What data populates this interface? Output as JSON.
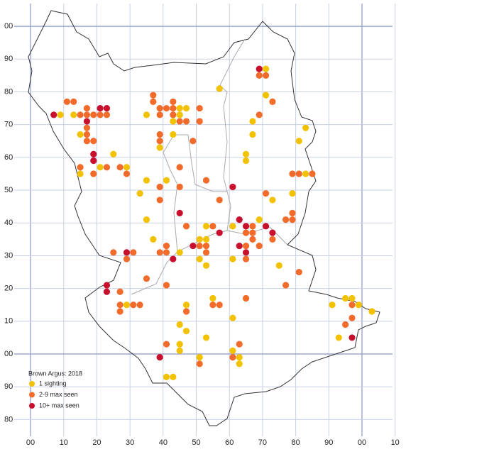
{
  "chart_data": {
    "type": "scatter",
    "title": "Brown Argus:  2018",
    "xlim": [
      -5,
      110
    ],
    "ylim": [
      -25,
      105
    ],
    "xticks": [
      {
        "value": 0,
        "label": "00"
      },
      10,
      20,
      30,
      40,
      50,
      60,
      70,
      80,
      90,
      {
        "value": 100,
        "label": "00"
      },
      {
        "value": 110,
        "label": "10"
      }
    ],
    "yticks": [
      {
        "value": -20,
        "label": "80"
      },
      {
        "value": -10,
        "label": "90"
      },
      {
        "value": 0,
        "label": "00"
      },
      10,
      20,
      30,
      40,
      50,
      60,
      70,
      80,
      90,
      {
        "value": 100,
        "label": "00"
      }
    ],
    "grid": true,
    "series": [
      {
        "name": "1 sighting",
        "color": "#f2c200",
        "x": [
          71,
          57,
          71,
          45,
          47,
          9,
          13,
          35,
          45,
          43,
          67,
          83,
          15,
          43,
          67,
          81,
          39,
          25,
          65,
          65,
          21,
          29,
          15,
          83,
          35,
          41,
          33,
          79,
          73,
          35,
          69,
          53,
          61,
          37,
          51,
          53,
          45,
          51,
          61,
          53,
          75,
          55,
          95,
          97,
          29,
          47,
          91,
          99,
          103,
          61,
          45,
          47,
          53,
          93,
          45,
          45,
          61,
          51,
          63,
          63,
          41,
          43
        ],
        "values": [
          87,
          81,
          79,
          75,
          75,
          73,
          73,
          73,
          73,
          71,
          71,
          69,
          67,
          67,
          67,
          65,
          63,
          61,
          61,
          59,
          57,
          57,
          55,
          55,
          53,
          53,
          49,
          49,
          47,
          41,
          41,
          39,
          39,
          35,
          35,
          35,
          31,
          29,
          29,
          27,
          27,
          17,
          17,
          17,
          15,
          15,
          15,
          15,
          13,
          11,
          9,
          7,
          5,
          5,
          3,
          1,
          1,
          -1,
          -1,
          -3,
          -7,
          -7
        ]
      },
      {
        "name": "2-9 max seen",
        "color": "#f26b2a",
        "x": [
          69,
          71,
          73,
          37,
          37,
          43,
          11,
          13,
          17,
          39,
          41,
          43,
          51,
          15,
          17,
          19,
          21,
          23,
          39,
          43,
          69,
          45,
          47,
          51,
          17,
          17,
          39,
          17,
          19,
          39,
          49,
          15,
          23,
          27,
          45,
          19,
          29,
          79,
          81,
          85,
          53,
          39,
          45,
          71,
          39,
          57,
          79,
          77,
          79,
          47,
          55,
          67,
          65,
          67,
          67,
          73,
          41,
          51,
          53,
          65,
          69,
          25,
          31,
          39,
          41,
          53,
          29,
          65,
          81,
          35,
          41,
          77,
          27,
          65,
          27,
          31,
          33,
          55,
          57,
          97,
          27,
          47,
          97,
          95,
          41,
          63,
          61,
          51
        ],
        "values": [
          85,
          85,
          77,
          79,
          77,
          77,
          77,
          77,
          75,
          75,
          75,
          75,
          75,
          73,
          73,
          73,
          73,
          73,
          73,
          73,
          73,
          71,
          71,
          71,
          69,
          67,
          67,
          65,
          65,
          65,
          65,
          57,
          57,
          57,
          57,
          55,
          55,
          55,
          55,
          55,
          53,
          51,
          51,
          49,
          47,
          47,
          43,
          41,
          41,
          39,
          39,
          39,
          37,
          37,
          35,
          35,
          33,
          33,
          33,
          33,
          33,
          31,
          31,
          31,
          31,
          31,
          29,
          29,
          25,
          23,
          21,
          21,
          19,
          17,
          15,
          15,
          15,
          15,
          15,
          15,
          13,
          13,
          11,
          9,
          3,
          3,
          -1,
          -3
        ]
      },
      {
        "name": "10+ max seen",
        "color": "#c8102e",
        "x": [
          69,
          21,
          23,
          7,
          17,
          19,
          19,
          61,
          45,
          63,
          65,
          71,
          57,
          73,
          49,
          63,
          29,
          65,
          43,
          23,
          23,
          97,
          39
        ],
        "values": [
          87,
          75,
          75,
          73,
          71,
          61,
          59,
          51,
          43,
          41,
          39,
          39,
          37,
          37,
          33,
          33,
          31,
          31,
          29,
          21,
          19,
          5,
          -1
        ]
      }
    ]
  }
}
